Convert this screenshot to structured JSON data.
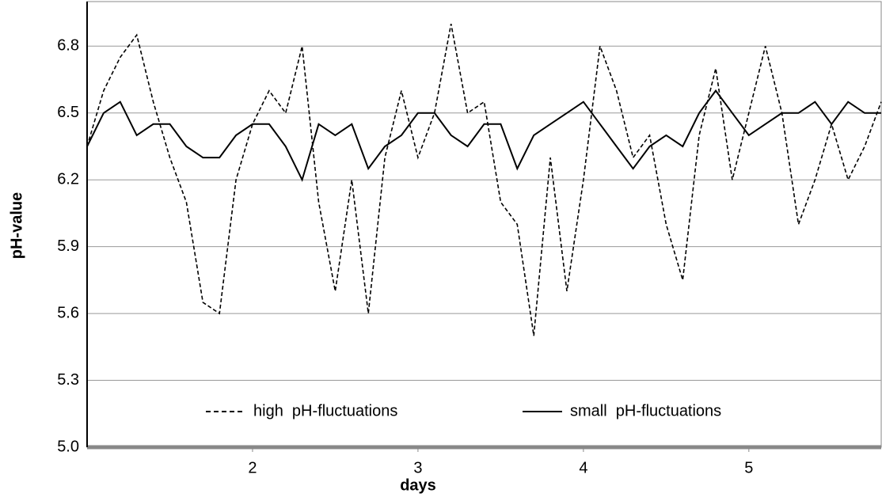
{
  "chart_data": {
    "type": "line",
    "x_label": "days",
    "y_label": "pH-value",
    "x": [
      1.0,
      1.1,
      1.2,
      1.3,
      1.4,
      1.5,
      1.6,
      1.7,
      1.8,
      1.9,
      2.0,
      2.1,
      2.2,
      2.3,
      2.4,
      2.5,
      2.6,
      2.7,
      2.8,
      2.9,
      3.0,
      3.1,
      3.2,
      3.3,
      3.4,
      3.5,
      3.6,
      3.7,
      3.8,
      3.9,
      4.0,
      4.1,
      4.2,
      4.3,
      4.4,
      4.5,
      4.6,
      4.7,
      4.8,
      4.9,
      5.0,
      5.1,
      5.2,
      5.3,
      5.4,
      5.5,
      5.6,
      5.7,
      5.8
    ],
    "series": [
      {
        "name": "high  pH-fluctuations",
        "color": "#000000",
        "line_style": "dashed",
        "values": [
          6.35,
          6.6,
          6.75,
          6.85,
          6.55,
          6.3,
          6.1,
          5.65,
          5.6,
          6.2,
          6.45,
          6.6,
          6.5,
          6.8,
          6.1,
          5.7,
          6.2,
          5.6,
          6.3,
          6.6,
          6.3,
          6.5,
          6.9,
          6.5,
          6.55,
          6.1,
          6.0,
          5.5,
          6.3,
          5.7,
          6.2,
          6.8,
          6.6,
          6.3,
          6.4,
          6.0,
          5.75,
          6.4,
          6.7,
          6.2,
          6.5,
          6.8,
          6.5,
          6.0,
          6.2,
          6.45,
          6.2,
          6.35,
          6.55
        ]
      },
      {
        "name": "small  pH-fluctuations",
        "color": "#000000",
        "line_style": "solid",
        "values": [
          6.35,
          6.5,
          6.55,
          6.4,
          6.45,
          6.45,
          6.35,
          6.3,
          6.3,
          6.4,
          6.45,
          6.45,
          6.35,
          6.2,
          6.45,
          6.4,
          6.45,
          6.25,
          6.35,
          6.4,
          6.5,
          6.5,
          6.4,
          6.35,
          6.45,
          6.45,
          6.25,
          6.4,
          6.45,
          6.5,
          6.55,
          6.45,
          6.35,
          6.25,
          6.35,
          6.4,
          6.35,
          6.5,
          6.6,
          6.5,
          6.4,
          6.45,
          6.5,
          6.5,
          6.55,
          6.45,
          6.55,
          6.5,
          6.5
        ]
      }
    ],
    "xlim": [
      1,
      5.8
    ],
    "xticks": [
      2,
      3,
      4,
      5
    ],
    "ylim": [
      5.0,
      7.0
    ],
    "yticks": [
      {
        "value": 5.0,
        "label": "5.0"
      },
      5.3,
      5.6,
      5.9,
      6.2,
      6.5,
      6.8
    ],
    "grid": true,
    "legend": "bottom"
  }
}
